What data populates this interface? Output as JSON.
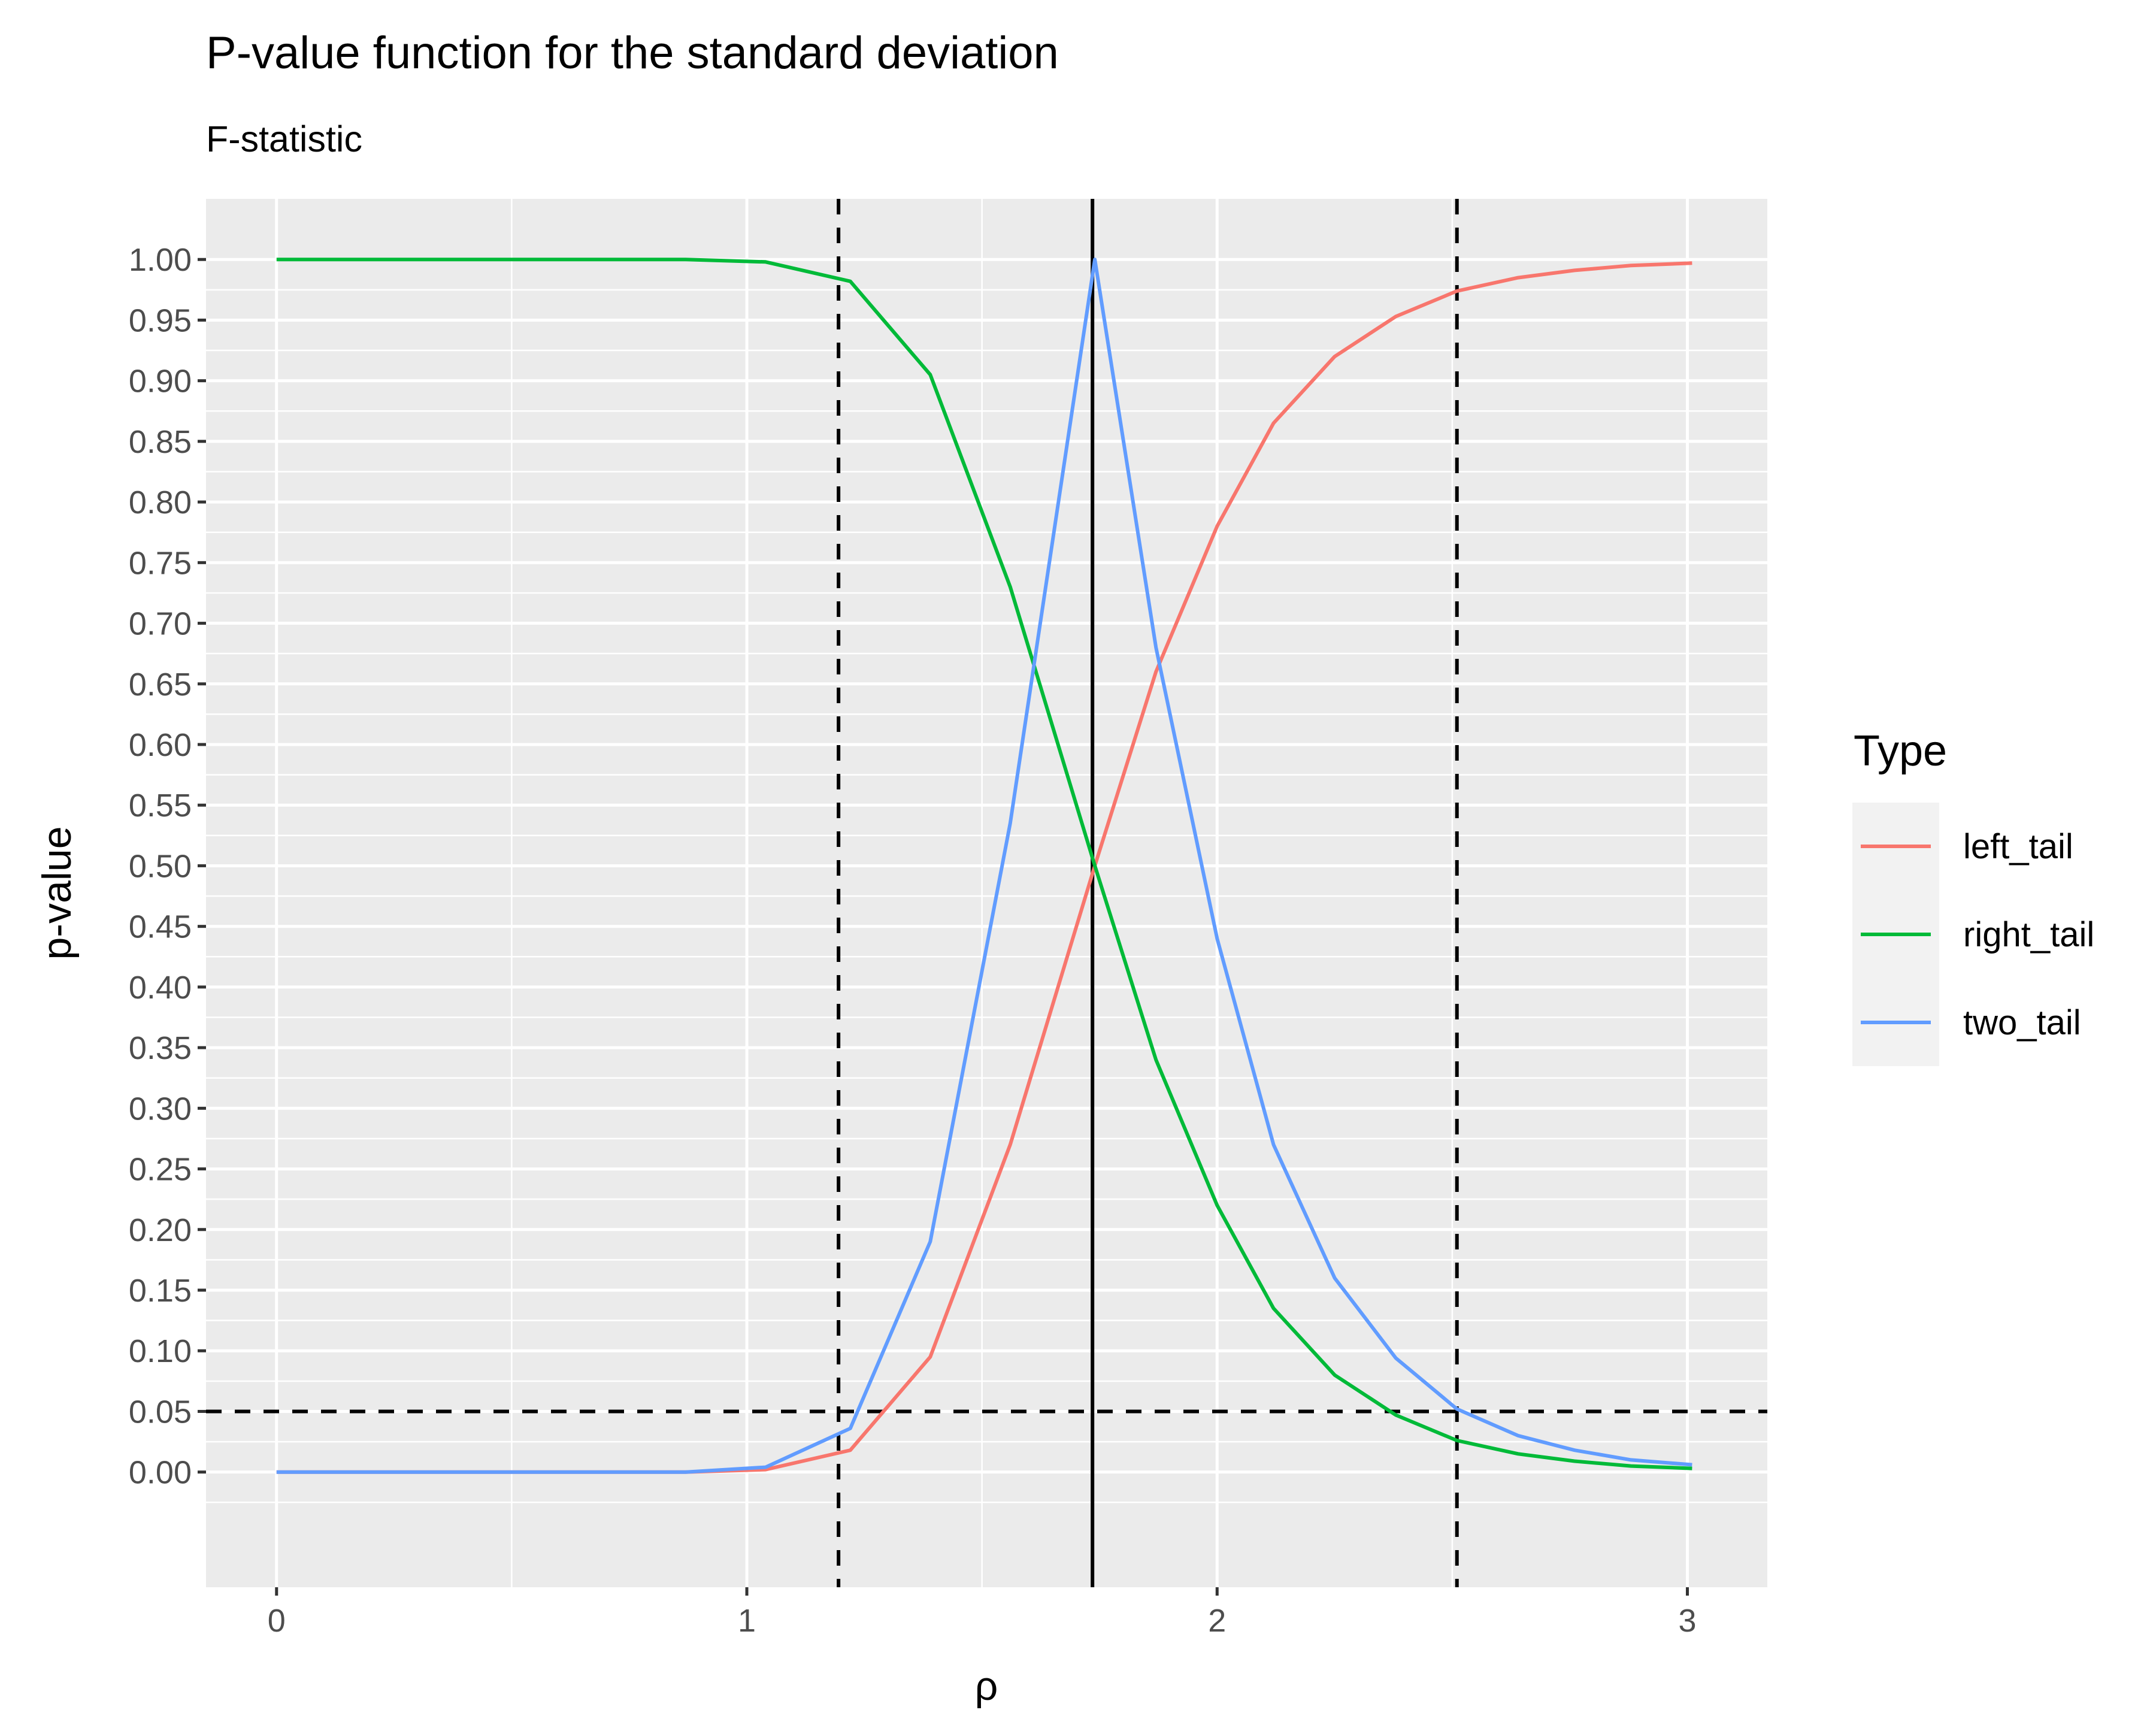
{
  "chart_data": {
    "type": "line",
    "title": "P-value function for the standard deviation",
    "subtitle": "F-statistic",
    "xlabel": "ρ",
    "ylabel": "p-value",
    "xlim": [
      -0.15,
      3.17
    ],
    "ylim": [
      -0.095,
      1.05
    ],
    "x_ticks": [
      0,
      1,
      2,
      3
    ],
    "x_tick_labels": [
      "0",
      "1",
      "2",
      "3"
    ],
    "y_ticks": [
      0,
      0.05,
      0.1,
      0.15,
      0.2,
      0.25,
      0.3,
      0.35,
      0.4,
      0.45,
      0.5,
      0.55,
      0.6,
      0.65,
      0.7,
      0.75,
      0.8,
      0.85,
      0.9,
      0.95,
      1.0
    ],
    "y_tick_labels": [
      "0.00",
      "0.05",
      "0.10",
      "0.15",
      "0.20",
      "0.25",
      "0.30",
      "0.35",
      "0.40",
      "0.45",
      "0.50",
      "0.55",
      "0.60",
      "0.65",
      "0.70",
      "0.75",
      "0.80",
      "0.85",
      "0.90",
      "0.95",
      "1.00"
    ],
    "grid": true,
    "legend": {
      "title": "Type",
      "position": "right"
    },
    "reference_lines": {
      "vertical_dashed": [
        1.195,
        2.51
      ],
      "vertical_solid": [
        1.735
      ],
      "horizontal_dashed": [
        0.05
      ]
    },
    "series": [
      {
        "name": "left_tail",
        "color": "#F8766D",
        "x": [
          0,
          0.87,
          1.04,
          1.22,
          1.39,
          1.56,
          1.74,
          1.87,
          2.0,
          2.12,
          2.25,
          2.38,
          2.51,
          2.64,
          2.76,
          2.88,
          3.01
        ],
        "y": [
          0,
          0,
          0.002,
          0.018,
          0.095,
          0.27,
          0.5,
          0.66,
          0.78,
          0.865,
          0.92,
          0.953,
          0.974,
          0.985,
          0.991,
          0.995,
          0.997
        ]
      },
      {
        "name": "right_tail",
        "color": "#00BA38",
        "x": [
          0,
          0.87,
          1.04,
          1.22,
          1.39,
          1.56,
          1.74,
          1.87,
          2.0,
          2.12,
          2.25,
          2.38,
          2.51,
          2.64,
          2.76,
          2.88,
          3.01
        ],
        "y": [
          1.0,
          1.0,
          0.998,
          0.982,
          0.905,
          0.73,
          0.5,
          0.34,
          0.22,
          0.135,
          0.08,
          0.047,
          0.026,
          0.015,
          0.009,
          0.005,
          0.003
        ]
      },
      {
        "name": "two_tail",
        "color": "#619CFF",
        "x": [
          0,
          0.87,
          1.04,
          1.22,
          1.39,
          1.56,
          1.74,
          1.87,
          2.0,
          2.12,
          2.25,
          2.38,
          2.51,
          2.64,
          2.76,
          2.88,
          3.01
        ],
        "y": [
          0,
          0,
          0.004,
          0.036,
          0.19,
          0.535,
          1.0,
          0.68,
          0.44,
          0.27,
          0.16,
          0.094,
          0.052,
          0.03,
          0.018,
          0.01,
          0.006
        ]
      }
    ]
  }
}
